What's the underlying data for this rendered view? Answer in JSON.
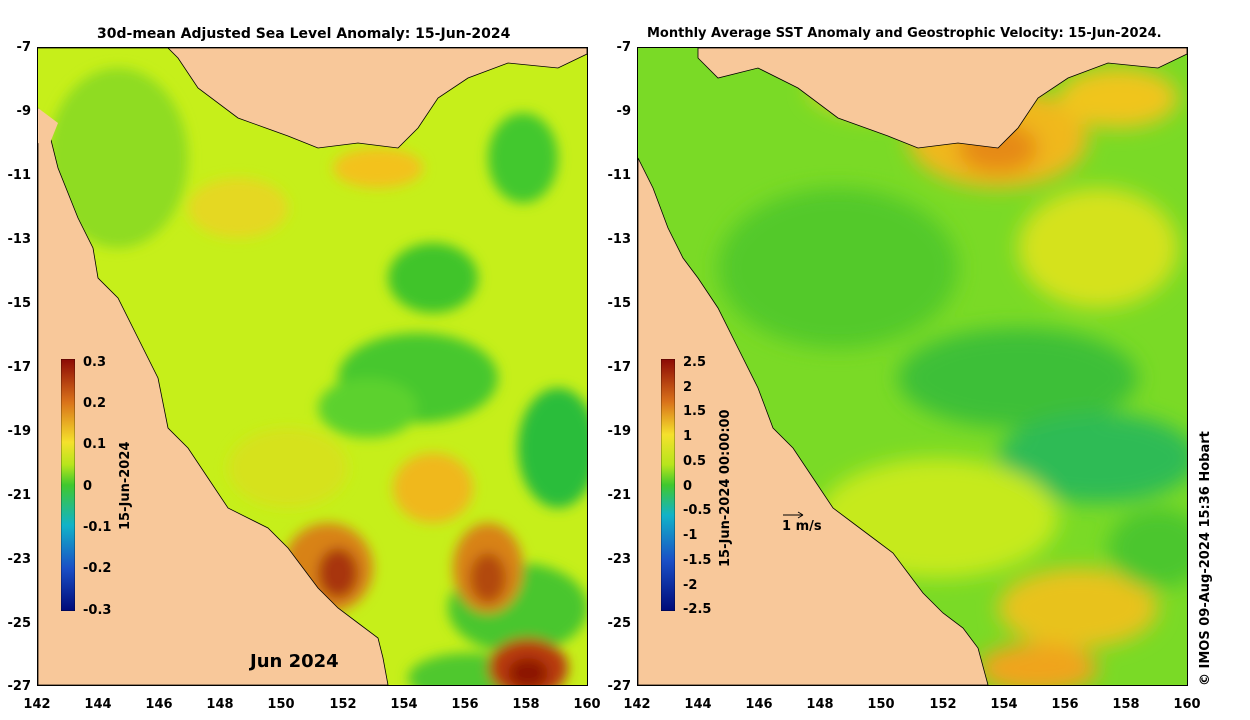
{
  "left_panel": {
    "title": "30d-mean Adjusted Sea Level Anomaly: 15-Jun-2024",
    "month_label": "Jun 2024",
    "colorbar": {
      "ticks": [
        "0.3",
        "0.2",
        "0.1",
        "0",
        "-0.1",
        "-0.2",
        "-0.3"
      ],
      "label": "15-Jun-2024"
    }
  },
  "right_panel": {
    "title": "Monthly Average SST Anomaly  and Geostrophic Velocity: 15-Jun-2024.",
    "velocity_scale_label": "1 m/s",
    "colorbar": {
      "ticks": [
        "2.5",
        "2",
        "1.5",
        "1",
        "0.5",
        "0",
        "-0.5",
        "-1",
        "-1.5",
        "-2",
        "-2.5"
      ],
      "label": "15-Jun-2024 00:00:00"
    }
  },
  "axes": {
    "y_ticks": [
      "-7",
      "-9",
      "-11",
      "-13",
      "-15",
      "-17",
      "-19",
      "-21",
      "-23",
      "-25",
      "-27"
    ],
    "x_ticks": [
      "142",
      "144",
      "146",
      "148",
      "150",
      "152",
      "154",
      "156",
      "158",
      "160"
    ]
  },
  "credit": "© IMOS 09-Aug-2024 15:36 Hobart",
  "colors": {
    "land": "#f8c89a",
    "ocean_base": "#c6ef1a",
    "green": "#43c82d",
    "orange": "#f3b418",
    "dark_red": "#a82408"
  }
}
